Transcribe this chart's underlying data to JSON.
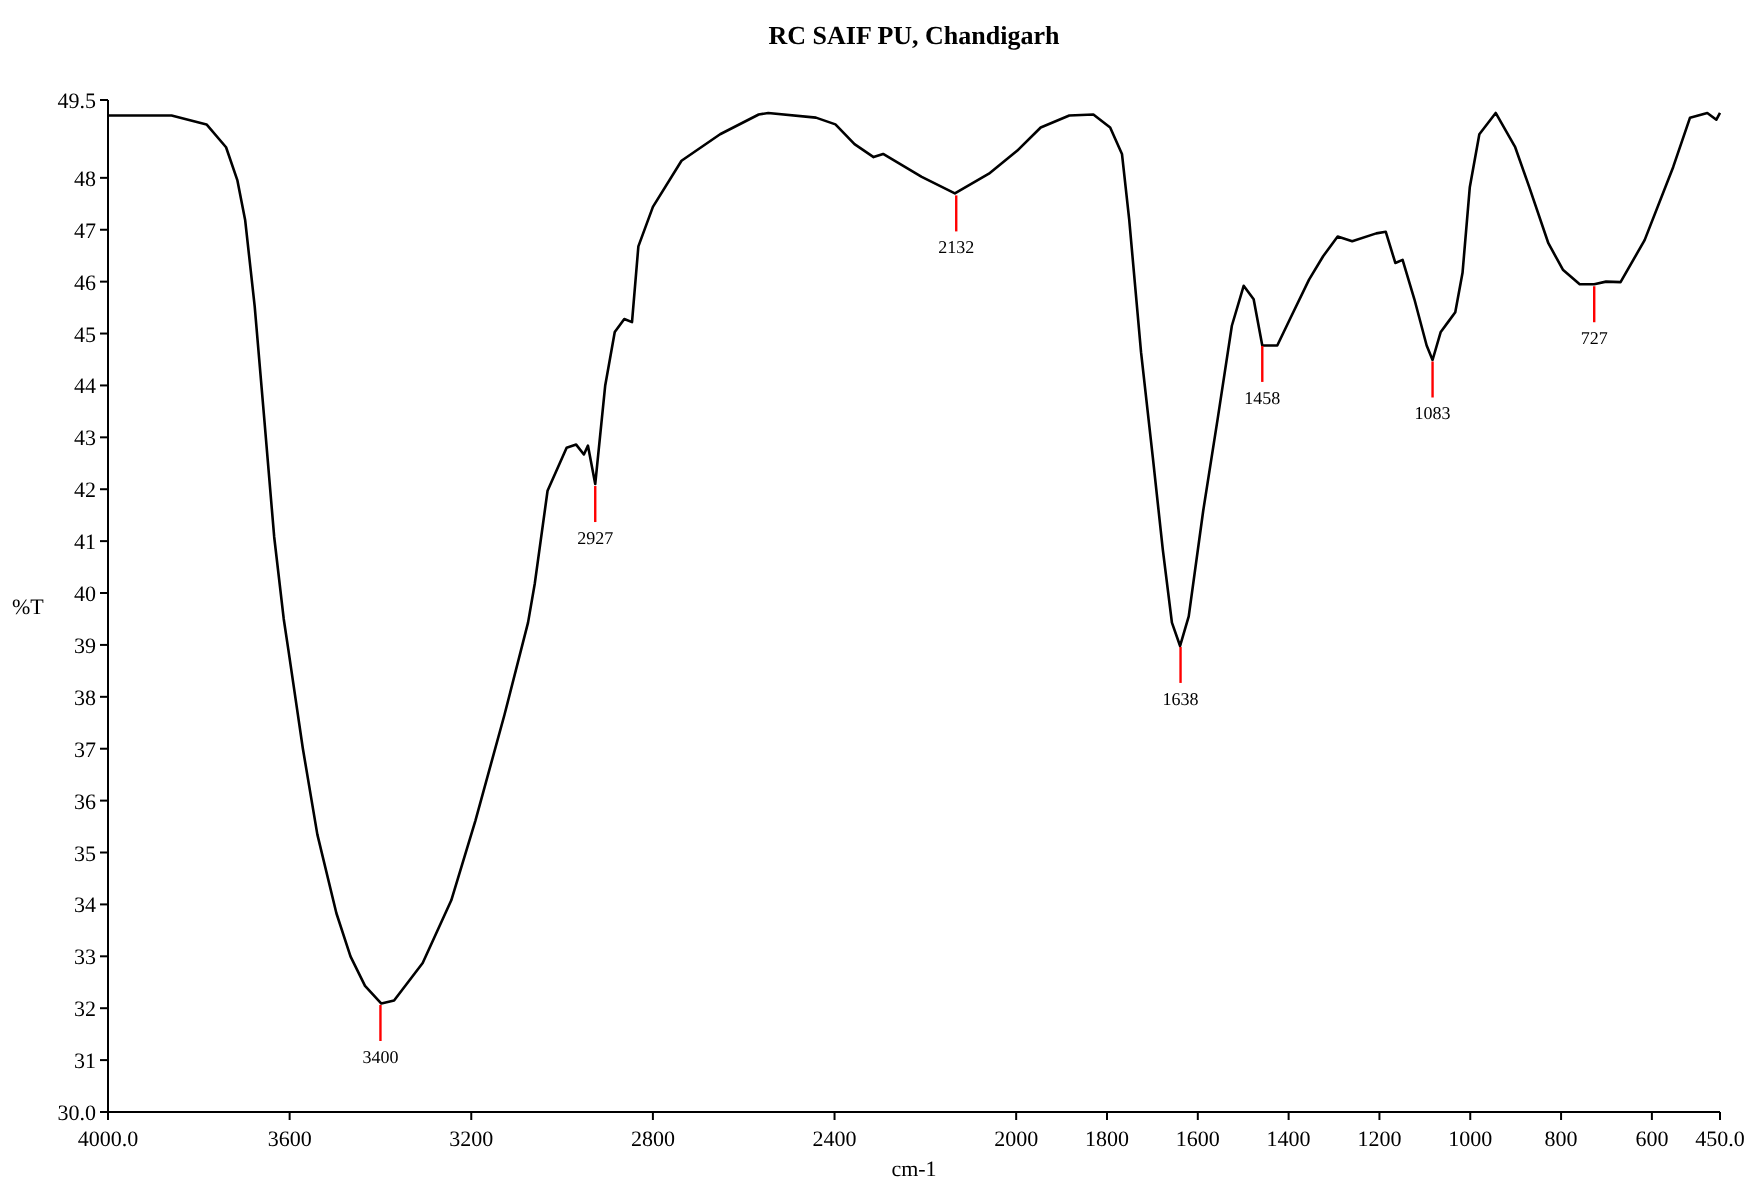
{
  "chart_data": {
    "type": "line",
    "title": "RC SAIF PU, Chandigarh",
    "xlabel": "cm-1",
    "ylabel": "%T",
    "xlim": [
      4000,
      450
    ],
    "xticks": [
      {
        "value": 4000,
        "label": "4000.0"
      },
      3600,
      3200,
      2800,
      2400,
      2000,
      1800,
      1600,
      1400,
      1200,
      1000,
      800,
      600,
      {
        "value": 450,
        "label": "450.0"
      }
    ],
    "ylim": [
      30,
      49.5
    ],
    "yticks": [
      {
        "value": 30,
        "label": "30.0"
      },
      31,
      32,
      33,
      34,
      35,
      36,
      37,
      38,
      39,
      40,
      41,
      42,
      43,
      44,
      45,
      46,
      47,
      48,
      {
        "value": 49.5,
        "label": "49.5"
      }
    ],
    "grid": false,
    "marker": "none",
    "line_style": "solid",
    "series": [
      {
        "color": "#000000",
        "x": [
          4000,
          3860,
          3783,
          3740,
          3715,
          3698,
          3677,
          3656,
          3634,
          3613,
          3603,
          3571,
          3539,
          3497,
          3466,
          3434,
          3398,
          3370,
          3307,
          3244,
          3191,
          3127,
          3075,
          3060,
          3032,
          2990,
          2969,
          2952,
          2943,
          2927,
          2905,
          2884,
          2863,
          2846,
          2832,
          2800,
          2737,
          2652,
          2567,
          2546,
          2441,
          2398,
          2356,
          2314,
          2293,
          2208,
          2135,
          2060,
          1998,
          1946,
          1883,
          1830,
          1793,
          1767,
          1751,
          1725,
          1699,
          1677,
          1657,
          1639,
          1620,
          1588,
          1556,
          1525,
          1499,
          1477,
          1458,
          1425,
          1397,
          1355,
          1324,
          1292,
          1260,
          1207,
          1186,
          1165,
          1149,
          1123,
          1096,
          1083,
          1065,
          1049,
          1033,
          1017,
          1001,
          980,
          944,
          901,
          870,
          828,
          796,
          759,
          727,
          701,
          669,
          616,
          553,
          516,
          478,
          458,
          450
        ],
        "values": [
          49.2,
          49.2,
          49.03,
          48.59,
          47.95,
          47.19,
          45.53,
          43.37,
          41.08,
          39.5,
          38.92,
          37.01,
          35.35,
          33.83,
          33.0,
          32.43,
          32.09,
          32.15,
          32.87,
          34.08,
          35.61,
          37.65,
          39.43,
          40.19,
          41.97,
          42.8,
          42.86,
          42.67,
          42.84,
          42.1,
          44.0,
          45.03,
          45.28,
          45.22,
          46.68,
          47.44,
          48.33,
          48.84,
          49.22,
          49.25,
          49.16,
          49.03,
          48.65,
          48.4,
          48.46,
          48.02,
          47.7,
          48.08,
          48.52,
          48.97,
          49.2,
          49.22,
          48.97,
          48.46,
          47.19,
          44.64,
          42.61,
          40.83,
          39.43,
          38.98,
          39.55,
          41.59,
          43.37,
          45.15,
          45.92,
          45.66,
          44.77,
          44.77,
          45.28,
          46.04,
          46.49,
          46.87,
          46.78,
          46.93,
          46.96,
          46.36,
          46.42,
          45.66,
          44.77,
          44.49,
          45.03,
          45.22,
          45.41,
          46.17,
          47.82,
          48.84,
          49.25,
          48.59,
          47.82,
          46.74,
          46.23,
          45.95,
          45.95,
          46.0,
          45.99,
          46.8,
          48.21,
          49.16,
          49.25,
          49.12,
          49.25
        ]
      }
    ],
    "annotations": [
      {
        "text": "3400",
        "x": 3400,
        "y": 32.1
      },
      {
        "text": "2927",
        "x": 2927,
        "y": 42.1
      },
      {
        "text": "2132",
        "x": 2132,
        "y": 47.7
      },
      {
        "text": "1638",
        "x": 1638,
        "y": 39.0
      },
      {
        "text": "1458",
        "x": 1458,
        "y": 44.8
      },
      {
        "text": "1083",
        "x": 1083,
        "y": 44.5
      },
      {
        "text": "727",
        "x": 727,
        "y": 45.95
      }
    ]
  }
}
